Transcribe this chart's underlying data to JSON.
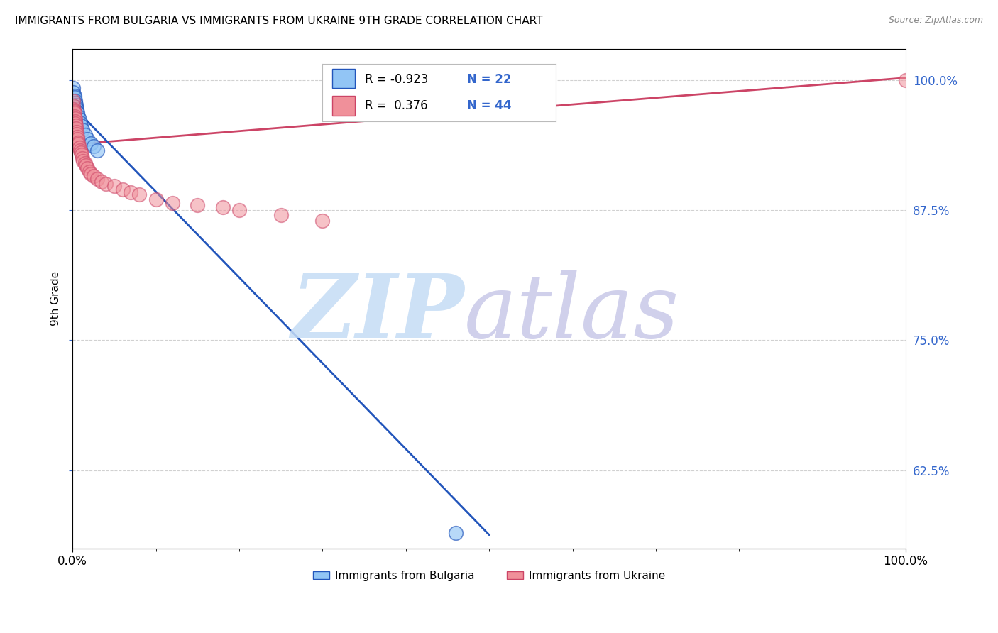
{
  "title": "IMMIGRANTS FROM BULGARIA VS IMMIGRANTS FROM UKRAINE 9TH GRADE CORRELATION CHART",
  "source": "Source: ZipAtlas.com",
  "ylabel": "9th Grade",
  "ytick_labels": [
    "100.0%",
    "87.5%",
    "75.0%",
    "62.5%"
  ],
  "ytick_values": [
    1.0,
    0.875,
    0.75,
    0.625
  ],
  "xlim": [
    0.0,
    1.0
  ],
  "ylim": [
    0.55,
    1.03
  ],
  "legend_r_bulgaria": "-0.923",
  "legend_n_bulgaria": "22",
  "legend_r_ukraine": "0.376",
  "legend_n_ukraine": "44",
  "color_bulgaria": "#92C5F5",
  "color_ukraine": "#F0909A",
  "color_bulgaria_line": "#2255BB",
  "color_ukraine_line": "#CC4466",
  "watermark_color_zip": "#C5DCF5",
  "watermark_color_atlas": "#C8C8E8",
  "background_color": "#FFFFFF",
  "title_fontsize": 11,
  "axis_label_color": "#3366CC",
  "bul_x": [
    0.001,
    0.001,
    0.002,
    0.002,
    0.003,
    0.003,
    0.004,
    0.004,
    0.005,
    0.005,
    0.006,
    0.007,
    0.008,
    0.009,
    0.01,
    0.012,
    0.015,
    0.018,
    0.022,
    0.025,
    0.03,
    0.46
  ],
  "bul_y": [
    0.992,
    0.988,
    0.985,
    0.983,
    0.98,
    0.978,
    0.976,
    0.974,
    0.972,
    0.97,
    0.968,
    0.965,
    0.962,
    0.959,
    0.956,
    0.952,
    0.947,
    0.943,
    0.939,
    0.936,
    0.932,
    0.565
  ],
  "ukr_x": [
    0.001,
    0.001,
    0.001,
    0.002,
    0.002,
    0.002,
    0.003,
    0.003,
    0.003,
    0.004,
    0.004,
    0.005,
    0.005,
    0.006,
    0.006,
    0.007,
    0.007,
    0.008,
    0.009,
    0.01,
    0.011,
    0.012,
    0.013,
    0.015,
    0.016,
    0.018,
    0.02,
    0.022,
    0.025,
    0.03,
    0.035,
    0.04,
    0.05,
    0.06,
    0.07,
    0.08,
    0.1,
    0.12,
    0.15,
    0.18,
    0.2,
    0.25,
    0.3,
    1.0
  ],
  "ukr_y": [
    0.98,
    0.975,
    0.972,
    0.97,
    0.968,
    0.965,
    0.963,
    0.96,
    0.958,
    0.956,
    0.953,
    0.95,
    0.948,
    0.945,
    0.943,
    0.94,
    0.938,
    0.935,
    0.932,
    0.93,
    0.928,
    0.925,
    0.922,
    0.92,
    0.918,
    0.915,
    0.912,
    0.91,
    0.908,
    0.905,
    0.902,
    0.9,
    0.898,
    0.895,
    0.892,
    0.89,
    0.885,
    0.882,
    0.88,
    0.878,
    0.875,
    0.87,
    0.865,
    1.0
  ],
  "bul_line_x": [
    0.0,
    0.5
  ],
  "bul_line_y": [
    0.975,
    0.563
  ],
  "ukr_line_x": [
    0.0,
    1.0
  ],
  "ukr_line_y": [
    0.938,
    1.002
  ]
}
